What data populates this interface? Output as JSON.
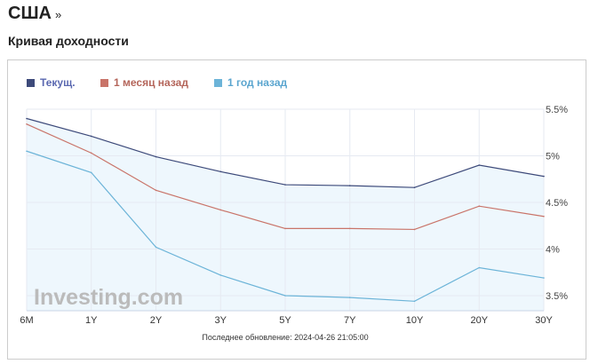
{
  "header": {
    "country": "США",
    "more": "»",
    "subtitle": "Кривая доходности"
  },
  "footer": {
    "updated": "Последнее обновление: 2024-04-26 21:05:00"
  },
  "watermark": "Investing.com",
  "chart_data": {
    "type": "line",
    "categories": [
      "6M",
      "1Y",
      "2Y",
      "3Y",
      "5Y",
      "7Y",
      "10Y",
      "20Y",
      "30Y"
    ],
    "yticks": [
      "5.5%",
      "5%",
      "4.5%",
      "4%",
      "3.5%"
    ],
    "ytick_values": [
      5.5,
      5,
      4.5,
      4,
      3.5
    ],
    "ylim": [
      3.34,
      5.5
    ],
    "grid": true,
    "legend_placement": "top-left",
    "series": [
      {
        "name": "Текущ.",
        "color": "#3d4a7a",
        "values": [
          5.4,
          5.21,
          4.99,
          4.83,
          4.69,
          4.68,
          4.66,
          4.9,
          4.78
        ]
      },
      {
        "name": "1 месяц назад",
        "color": "#c97469",
        "values": [
          5.34,
          5.03,
          4.63,
          4.42,
          4.22,
          4.22,
          4.21,
          4.46,
          4.35
        ]
      },
      {
        "name": "1 год назад",
        "color": "#6cb4d8",
        "values": [
          5.05,
          4.82,
          4.02,
          3.72,
          3.5,
          3.48,
          3.44,
          3.8,
          3.69
        ]
      }
    ],
    "area_fill": "#eef7fd"
  }
}
